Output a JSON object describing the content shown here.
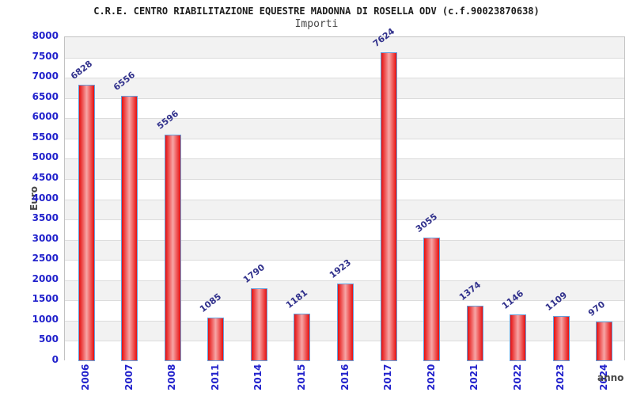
{
  "chart_data": {
    "type": "bar",
    "title": "C.R.E. CENTRO RIABILITAZIONE EQUESTRE MADONNA DI ROSELLA ODV (c.f.90023870638)",
    "subtitle": "Importi",
    "xlabel": "anno",
    "ylabel": "Euro",
    "categories": [
      "2006",
      "2007",
      "2008",
      "2011",
      "2014",
      "2015",
      "2016",
      "2017",
      "2020",
      "2021",
      "2022",
      "2023",
      "2024"
    ],
    "values": [
      6828,
      6556,
      5596,
      1085,
      1790,
      1181,
      1923,
      7624,
      3055,
      1374,
      1146,
      1109,
      970
    ],
    "ylim": [
      0,
      8000
    ],
    "ytick_step": 500,
    "grid": "horizontal-bands-alternating",
    "legend": "none",
    "colors": {
      "bar_edge": "#e60f0f",
      "bar_center": "#f7a6a6",
      "bar_border": "#64a0dc",
      "axis_tick_label": "#2222cc",
      "value_label": "#31318c",
      "band_gray": "#f2f2f2",
      "band_white": "#ffffff",
      "grid_line": "#dcdcdc",
      "plot_border": "#c2c2c2",
      "title_color": "#1c1c1c",
      "subtitle_color": "#474747",
      "axis_title_color": "#474747"
    }
  }
}
